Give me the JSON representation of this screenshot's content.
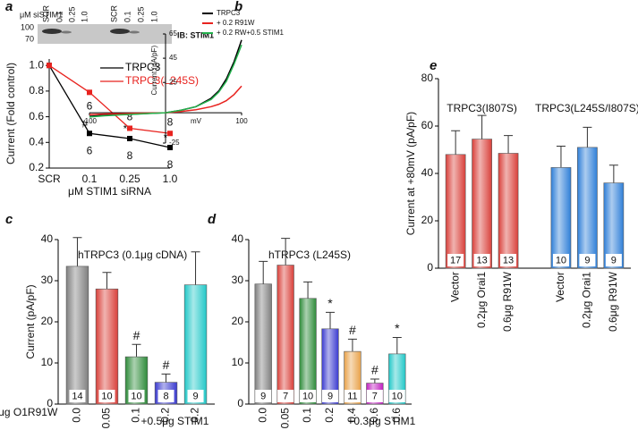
{
  "blot": {
    "label": "μM siSTIM1",
    "lanes": [
      "SCR",
      "0.1",
      "0.25",
      "1.0",
      "SCR",
      "0.1",
      "0.25",
      "1.0"
    ],
    "markers": [
      100,
      70
    ],
    "antibody": "IB: STIM1"
  },
  "chart_data": [
    {
      "panel": "a",
      "type": "line",
      "categories": [
        "SCR",
        "0.1",
        "0.25",
        "1.0"
      ],
      "x_label": "μM STIM1 siRNA",
      "y_label": "Current (Fold control)",
      "ylim": [
        0.2,
        1.05
      ],
      "yticks": [
        0.2,
        0.4,
        0.6,
        0.8,
        {
          "value": 1.0,
          "label": "1.0"
        }
      ],
      "series": [
        {
          "name": "TRPC3",
          "color": "#000000",
          "values": [
            1.0,
            0.47,
            0.43,
            0.36
          ],
          "n_labels": [
            null,
            6,
            8,
            8
          ],
          "sig_labels": [
            null,
            "#",
            "*",
            "*"
          ]
        },
        {
          "name": "TRPC3(L245S)",
          "color": "#e8231f",
          "values": [
            1.0,
            0.79,
            0.51,
            0.47
          ],
          "n_labels": [
            null,
            6,
            8,
            8
          ]
        }
      ]
    },
    {
      "panel": "b",
      "type": "line",
      "x": [
        -100,
        -80,
        -60,
        -40,
        -20,
        0,
        20,
        40,
        60,
        70,
        80,
        90,
        100
      ],
      "x_label": "mV",
      "y_label": "Current (pA/pF)",
      "xlim": [
        -100,
        100
      ],
      "xticks": [
        -100,
        100
      ],
      "ylim": [
        -25,
        65
      ],
      "yticks": [
        -25,
        25,
        45,
        65
      ],
      "legend": "top-right",
      "series": [
        {
          "name": "TRPC3",
          "color": "#000000",
          "values": [
            -3,
            -2,
            -1.5,
            -1,
            -0.5,
            0,
            2,
            5,
            12,
            18,
            28,
            42,
            60
          ]
        },
        {
          "name": "+ 0.2 R91W",
          "color": "#e8231f",
          "values": [
            -1.5,
            -1,
            -0.8,
            -0.5,
            -0.2,
            0,
            1,
            2.5,
            5,
            7,
            10,
            15,
            22
          ]
        },
        {
          "name": "+ 0.2 RW+0.5 STIM1",
          "color": "#22b14c",
          "values": [
            -3.5,
            -2.5,
            -1.8,
            -1.2,
            -0.6,
            0,
            2,
            5,
            11,
            17,
            26,
            40,
            56
          ]
        }
      ]
    },
    {
      "panel": "c",
      "type": "bar",
      "title": "hTRPC3 (0.1μg cDNA)",
      "y_label": "Current (pA/pF)",
      "ylim": [
        0,
        40
      ],
      "yticks": [
        0,
        10,
        20,
        30,
        40
      ],
      "categories": [
        "0.0",
        "0.05",
        "0.1",
        "0.2",
        "0.2"
      ],
      "values": [
        33.5,
        28,
        11.5,
        5.3,
        29
      ],
      "errors": [
        7,
        4,
        3,
        2,
        8
      ],
      "colors": [
        "#7f7f7f",
        "#d9403a",
        "#2e8b3a",
        "#3b3bd0",
        "#22c8c8"
      ],
      "n_labels": [
        14,
        10,
        10,
        8,
        9
      ],
      "sig_labels": [
        null,
        null,
        "#",
        "#",
        null
      ],
      "row_label": "μg O1R91W",
      "bracket_label": "+0.5μg STIM1"
    },
    {
      "panel": "d",
      "type": "bar",
      "title": "hTRPC3 (L245S)",
      "ylim": [
        0,
        40
      ],
      "yticks": [
        0,
        10,
        20,
        30,
        40
      ],
      "categories": [
        "0.0",
        "0.05",
        "0.1",
        "0.2",
        "0.4",
        "0.6",
        "0.6"
      ],
      "values": [
        29.2,
        33.8,
        25.7,
        18.3,
        12.8,
        5.1,
        12.2
      ],
      "errors": [
        5.5,
        6.5,
        4,
        4,
        3,
        1,
        4
      ],
      "colors": [
        "#7f7f7f",
        "#d9403a",
        "#2e8b3a",
        "#3b3bd0",
        "#e8a24a",
        "#c020c0",
        "#22c8c8"
      ],
      "n_labels": [
        9,
        7,
        10,
        9,
        11,
        7,
        10
      ],
      "sig_labels": [
        null,
        null,
        null,
        "*",
        "#",
        "#",
        "*"
      ],
      "bracket_label": "+0.3μg STIM1"
    },
    {
      "panel": "e",
      "type": "bar",
      "y_label": "Current at +80mV (pA/pF)",
      "ylim": [
        0,
        80
      ],
      "yticks": [
        0,
        20,
        40,
        60,
        80
      ],
      "groups": [
        "TRPC3(I807S)",
        "TRPC3(L245S/I807S)"
      ],
      "categories": [
        "Vector",
        "0.2μg Orai1",
        "0.6μg R91W",
        "Vector",
        "0.2μg Orai1",
        "0.6μg R91W"
      ],
      "values": [
        48,
        54.5,
        48.5,
        42.5,
        51,
        36
      ],
      "errors": [
        10,
        10,
        7.5,
        9,
        8.5,
        7.5
      ],
      "colors": [
        "#d9403a",
        "#d9403a",
        "#d9403a",
        "#2f7fd8",
        "#2f7fd8",
        "#2f7fd8"
      ],
      "n_labels": [
        17,
        13,
        13,
        10,
        9,
        9
      ]
    }
  ]
}
